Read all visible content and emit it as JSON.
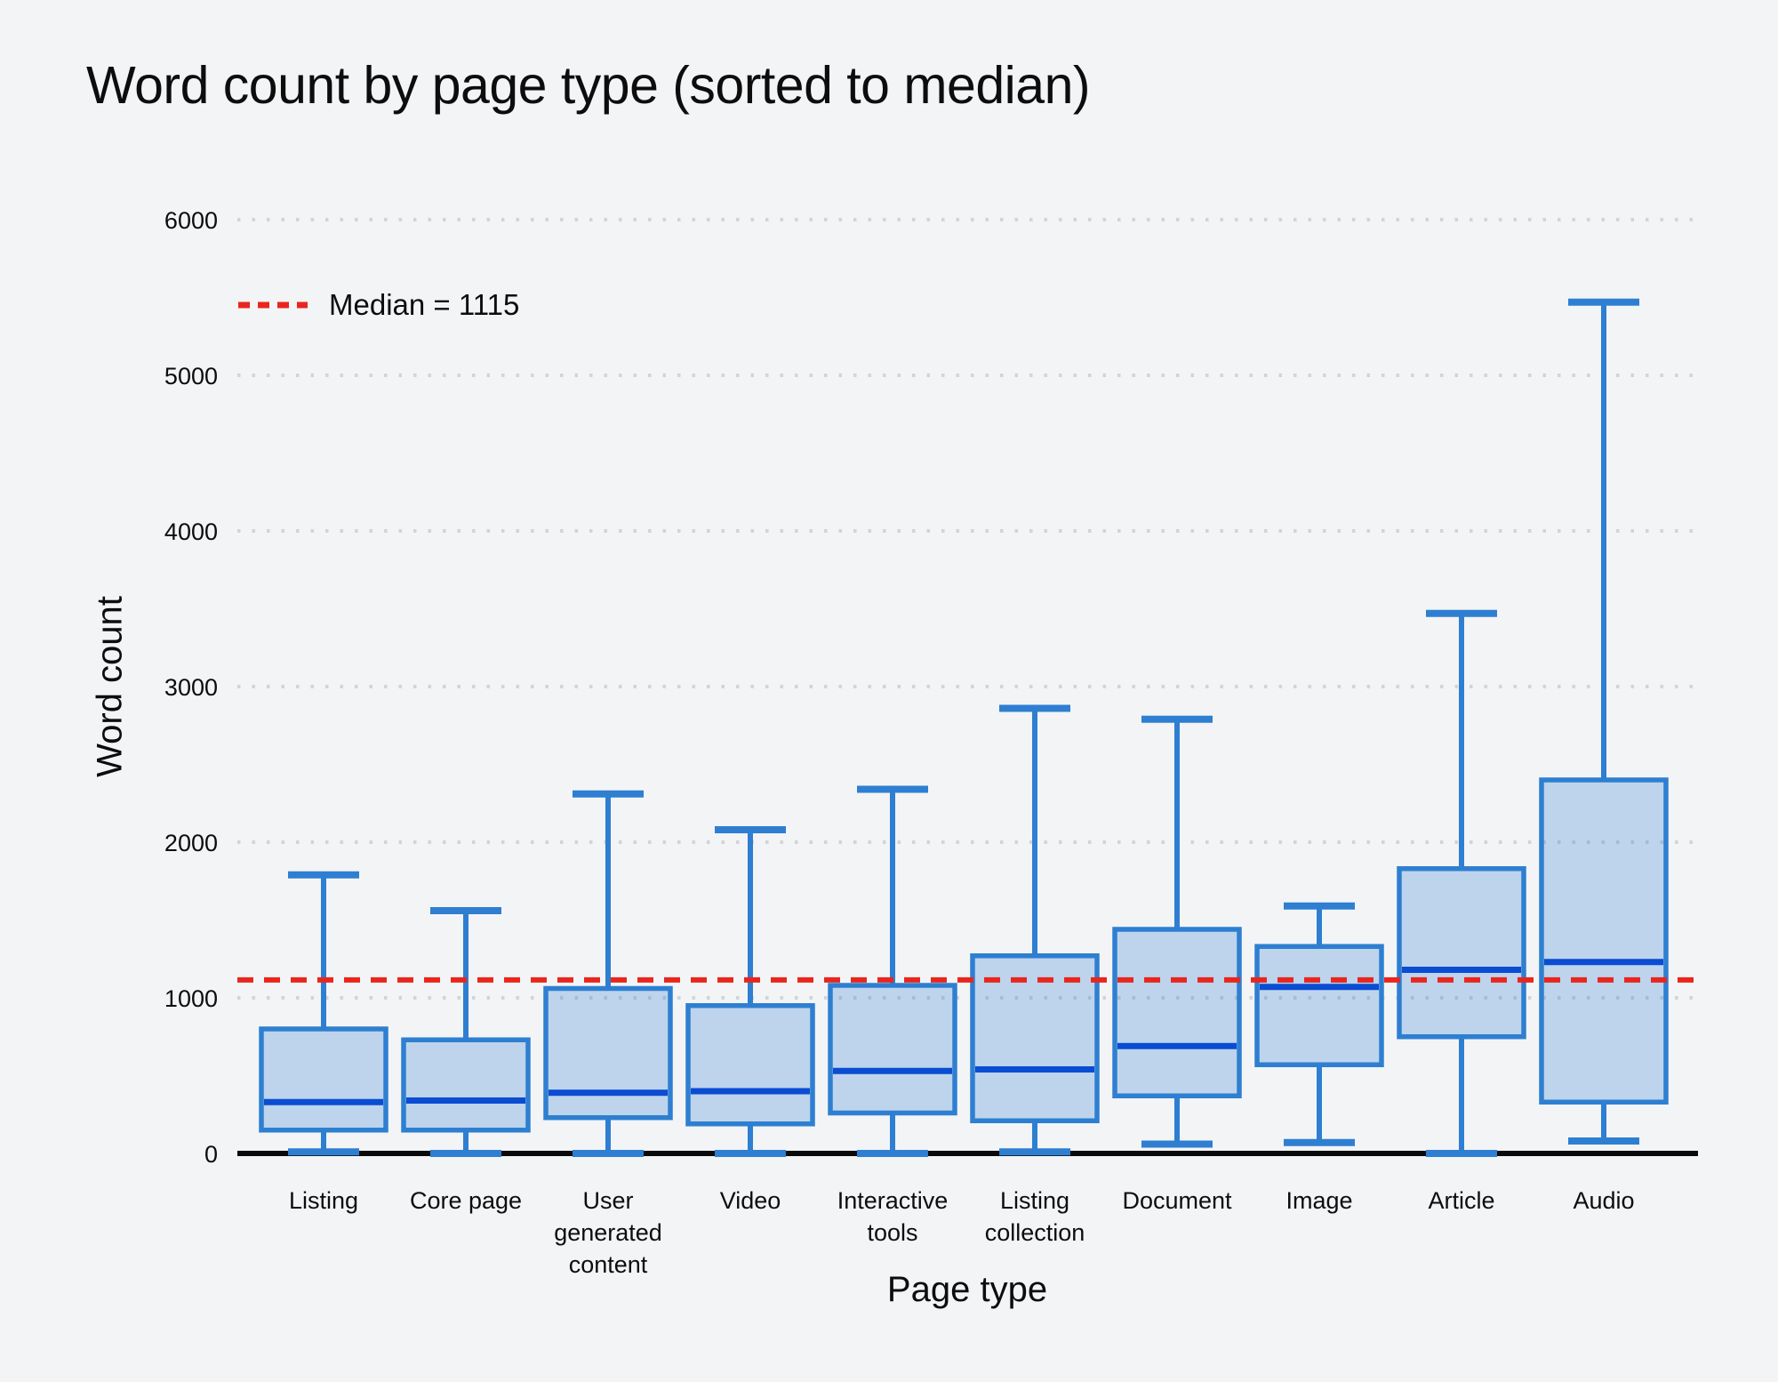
{
  "title": "Word count by page type (sorted to median)",
  "legend": {
    "label": "Median = 1115"
  },
  "colors": {
    "background": "#f3f4f6",
    "box_fill": "#c7d9ed",
    "box_stroke": "#2e7fd1",
    "median_stroke": "#0a4cd2",
    "overall_median_line": "#e8261e",
    "gridline": "#d3d4d7",
    "axis": "#0a0a0a",
    "text": "#0d0d0d"
  },
  "chart_data": {
    "type": "box",
    "title": "Word count by page type (sorted to median)",
    "xlabel": "Page type",
    "ylabel": "Word count",
    "ylim": [
      0,
      6000
    ],
    "yticks": [
      0,
      1000,
      2000,
      3000,
      4000,
      5000,
      6000
    ],
    "grid": "dotted horizontal",
    "median_line": {
      "value": 1115,
      "label": "Median = 1115",
      "color": "#e8261e",
      "style": "dashed"
    },
    "categories": [
      "Listing",
      "Core page",
      "User generated content",
      "Video",
      "Interactive tools",
      "Listing collection",
      "Document",
      "Image",
      "Article",
      "Audio"
    ],
    "series": [
      {
        "name": "Listing",
        "min": 10,
        "q1": 150,
        "median": 330,
        "q3": 800,
        "max": 1790
      },
      {
        "name": "Core page",
        "min": 0,
        "q1": 150,
        "median": 340,
        "q3": 730,
        "max": 1560
      },
      {
        "name": "User generated content",
        "min": 0,
        "q1": 230,
        "median": 390,
        "q3": 1060,
        "max": 2310
      },
      {
        "name": "Video",
        "min": 0,
        "q1": 190,
        "median": 400,
        "q3": 950,
        "max": 2080
      },
      {
        "name": "Interactive tools",
        "min": 0,
        "q1": 260,
        "median": 530,
        "q3": 1080,
        "max": 2340
      },
      {
        "name": "Listing collection",
        "min": 10,
        "q1": 210,
        "median": 540,
        "q3": 1270,
        "max": 2860
      },
      {
        "name": "Document",
        "min": 60,
        "q1": 370,
        "median": 690,
        "q3": 1440,
        "max": 2790
      },
      {
        "name": "Image",
        "min": 70,
        "q1": 570,
        "median": 1070,
        "q3": 1330,
        "max": 1590
      },
      {
        "name": "Article",
        "min": 0,
        "q1": 750,
        "median": 1180,
        "q3": 1830,
        "max": 3470
      },
      {
        "name": "Audio",
        "min": 80,
        "q1": 330,
        "median": 1230,
        "q3": 2400,
        "max": 5470
      }
    ]
  }
}
